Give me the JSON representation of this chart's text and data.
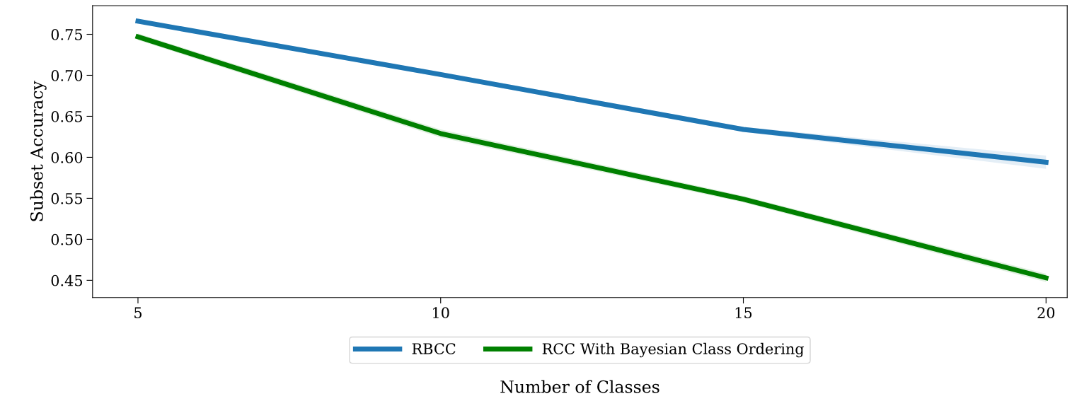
{
  "chart_data": {
    "type": "line",
    "xlabel": "Number of Classes",
    "ylabel": "Subset Accuracy",
    "x": [
      5,
      10,
      15,
      20
    ],
    "series": [
      {
        "name": "RBCC",
        "color": "#1f77b4",
        "values": [
          0.766,
          0.701,
          0.634,
          0.594
        ],
        "lower": [
          0.764,
          0.698,
          0.631,
          0.586
        ],
        "upper": [
          0.768,
          0.704,
          0.637,
          0.602
        ]
      },
      {
        "name": "RCC With Bayesian Class Ordering",
        "color": "#008000",
        "values": [
          0.747,
          0.629,
          0.549,
          0.453
        ],
        "lower": [
          0.743,
          0.624,
          0.545,
          0.448
        ],
        "upper": [
          0.751,
          0.634,
          0.553,
          0.458
        ]
      }
    ],
    "xlim": [
      4.25,
      20.35
    ],
    "ylim": [
      0.429,
      0.785
    ],
    "xticks": [
      5,
      10,
      15,
      20
    ],
    "yticks": [
      {
        "value": 0.45,
        "label": "0.45"
      },
      {
        "value": 0.5,
        "label": "0.50"
      },
      {
        "value": 0.55,
        "label": "0.55"
      },
      {
        "value": 0.6,
        "label": "0.60"
      },
      {
        "value": 0.65,
        "label": "0.65"
      },
      {
        "value": 0.7,
        "label": "0.70"
      },
      {
        "value": 0.75,
        "label": "0.75"
      }
    ],
    "grid": false,
    "legend": "bottom",
    "marker": "none",
    "line_style": "solid"
  }
}
